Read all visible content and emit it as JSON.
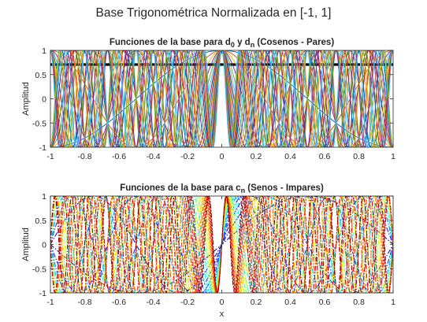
{
  "figure": {
    "suptitle": "Base Trigonométrica Normalizada en [-1, 1]"
  },
  "chart_data": [
    {
      "type": "line",
      "title_parts": [
        {
          "t": "Funciones de la base para d"
        },
        {
          "t": "0",
          "sub": true
        },
        {
          "t": " y d"
        },
        {
          "t": "n",
          "sub": true
        },
        {
          "t": " (Cosenos - Pares)"
        }
      ],
      "xlabel": "",
      "ylabel": "Amplitud",
      "xlim": [
        -1,
        1
      ],
      "ylim": [
        -1,
        1
      ],
      "xticks": [
        -1,
        -0.8,
        -0.6,
        -0.4,
        -0.2,
        0,
        0.2,
        0.4,
        0.6,
        0.8,
        1
      ],
      "xtick_labels": [
        "-1",
        "-0.8",
        "-0.6",
        "-0.4",
        "-0.2",
        "0",
        "0.2",
        "0.4",
        "0.6",
        "0.8",
        "1"
      ],
      "yticks": [
        -1,
        -0.5,
        0,
        0.5,
        1
      ],
      "ytick_labels": [
        "-1",
        "-0.5",
        "0",
        "0.5",
        "1"
      ],
      "grid": false,
      "constant_series": {
        "function": "1/sqrt(2)",
        "value": 0.7071,
        "color": "#000000"
      },
      "series_function": "cos(n*pi*x)",
      "n": [
        1,
        2,
        3,
        4,
        5,
        6,
        7,
        8,
        9,
        10,
        11,
        12,
        13,
        14,
        15,
        16,
        17,
        18,
        19,
        20
      ],
      "colors": [
        "#0072bd",
        "#d95319",
        "#edb120",
        "#7e2f8e",
        "#77ac30",
        "#4dbeee",
        "#a2142f"
      ]
    },
    {
      "type": "line",
      "title_parts": [
        {
          "t": "Funciones de la base para c"
        },
        {
          "t": "n",
          "sub": true
        },
        {
          "t": " (Senos - Impares)"
        }
      ],
      "xlabel": "x",
      "ylabel": "Amplitud",
      "xlim": [
        -1,
        1
      ],
      "ylim": [
        -1,
        1
      ],
      "xticks": [
        -1,
        -0.8,
        -0.6,
        -0.4,
        -0.2,
        0,
        0.2,
        0.4,
        0.6,
        0.8,
        1
      ],
      "xtick_labels": [
        "-1",
        "-0.8",
        "-0.6",
        "-0.4",
        "-0.2",
        "0",
        "0.2",
        "0.4",
        "0.6",
        "0.8",
        "1"
      ],
      "yticks": [
        -1,
        -0.5,
        0,
        0.5,
        1
      ],
      "ytick_labels": [
        "-1",
        "-0.5",
        "0",
        "0.5",
        "1"
      ],
      "grid": false,
      "series_function": "sin(n*pi*x)",
      "n": [
        1,
        2,
        3,
        4,
        5,
        6,
        7,
        8,
        9,
        10,
        11,
        12,
        13,
        14,
        15,
        16,
        17,
        18,
        19,
        20
      ],
      "line_style": "dashdot",
      "colormap": "jet"
    }
  ]
}
